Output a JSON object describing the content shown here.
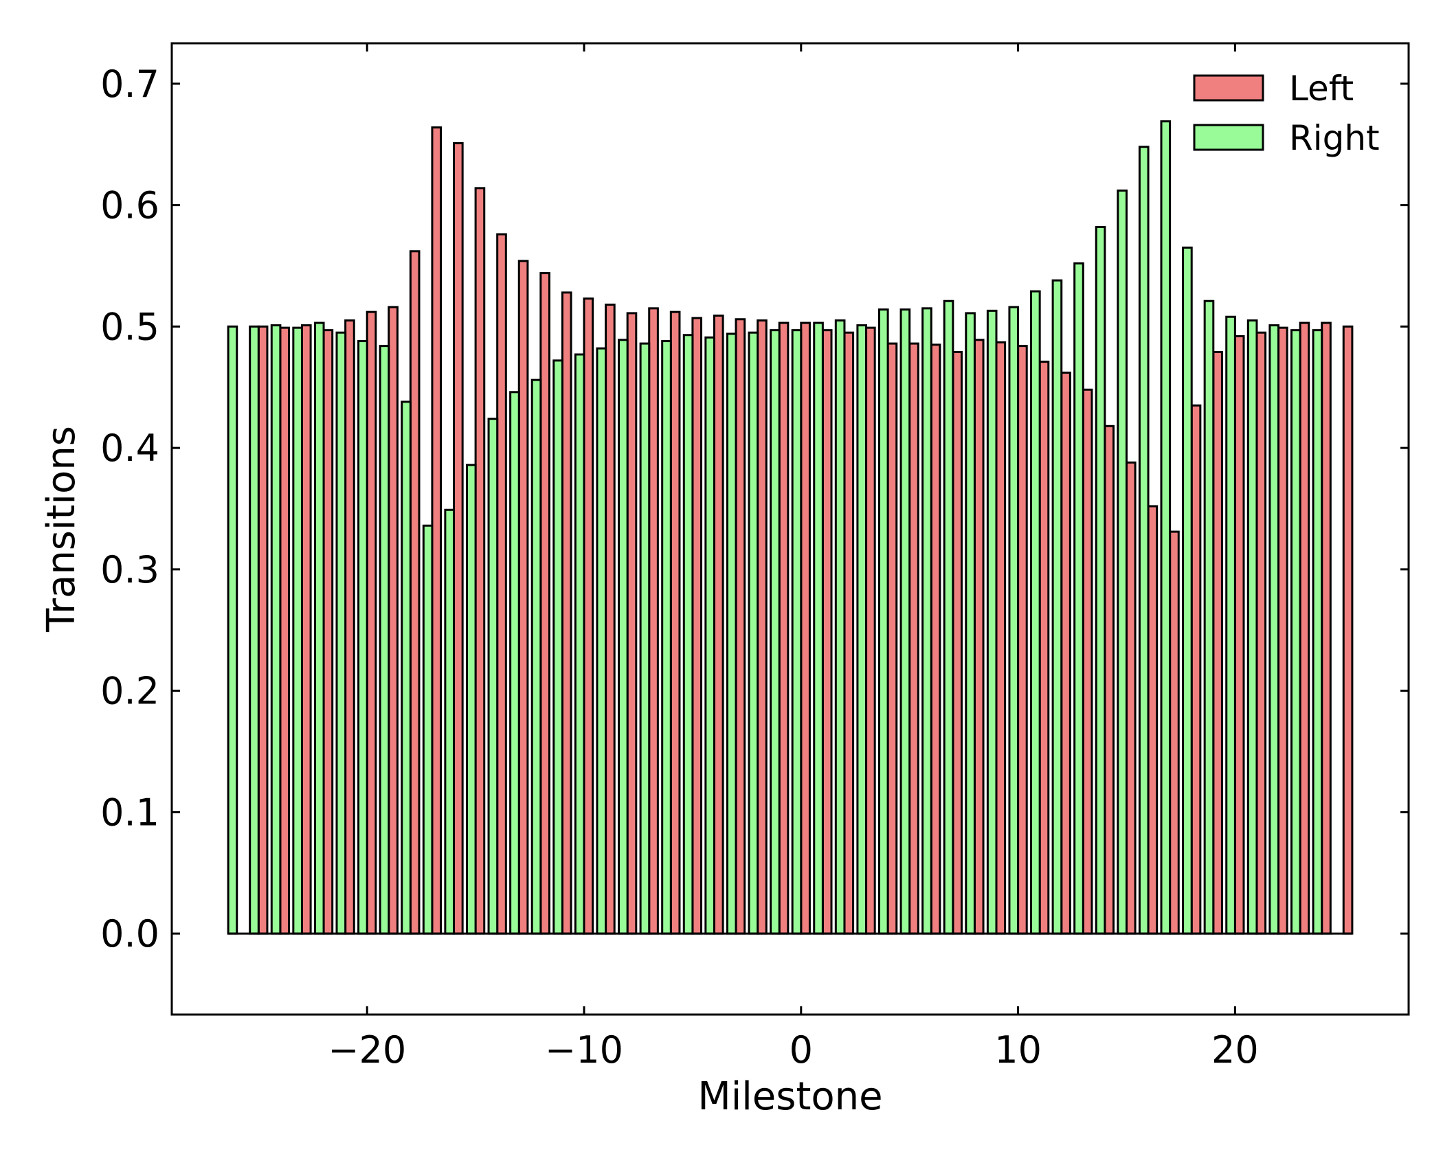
{
  "chart_data": {
    "type": "bar",
    "xlabel": "Milestone",
    "ylabel": "Transitions",
    "xlim": [
      -29,
      28
    ],
    "ylim": [
      -0.0667,
      0.7333
    ],
    "xticks": [
      -20,
      -10,
      0,
      10,
      20
    ],
    "xtick_labels": [
      "−20",
      "−10",
      "0",
      "10",
      "20"
    ],
    "yticks": [
      0.0,
      0.1,
      0.2,
      0.3,
      0.4,
      0.5,
      0.6,
      0.7
    ],
    "ytick_labels": [
      "0.0",
      "0.1",
      "0.2",
      "0.3",
      "0.4",
      "0.5",
      "0.6",
      "0.7"
    ],
    "legend_position": "top-right",
    "colors": {
      "Left": "#f08080",
      "Right": "#98fb98",
      "edge": "#000000"
    },
    "x": [
      -26,
      -25,
      -24,
      -23,
      -22,
      -21,
      -20,
      -19,
      -18,
      -17,
      -16,
      -15,
      -14,
      -13,
      -12,
      -11,
      -10,
      -9,
      -8,
      -7,
      -6,
      -5,
      -4,
      -3,
      -2,
      -1,
      0,
      1,
      2,
      3,
      4,
      5,
      6,
      7,
      8,
      9,
      10,
      11,
      12,
      13,
      14,
      15,
      16,
      17,
      18,
      19,
      20,
      21,
      22,
      23,
      24,
      25
    ],
    "series": [
      {
        "name": "Left",
        "values": [
          0.0,
          0.5,
          0.499,
          0.501,
          0.497,
          0.505,
          0.512,
          0.516,
          0.562,
          0.664,
          0.651,
          0.614,
          0.576,
          0.554,
          0.544,
          0.528,
          0.523,
          0.518,
          0.511,
          0.515,
          0.512,
          0.507,
          0.509,
          0.506,
          0.505,
          0.503,
          0.503,
          0.497,
          0.495,
          0.499,
          0.486,
          0.486,
          0.485,
          0.479,
          0.489,
          0.487,
          0.484,
          0.471,
          0.462,
          0.448,
          0.418,
          0.388,
          0.352,
          0.331,
          0.435,
          0.479,
          0.492,
          0.495,
          0.499,
          0.503,
          0.503,
          0.5
        ]
      },
      {
        "name": "Right",
        "values": [
          0.5,
          0.5,
          0.501,
          0.499,
          0.503,
          0.495,
          0.488,
          0.484,
          0.438,
          0.336,
          0.349,
          0.386,
          0.424,
          0.446,
          0.456,
          0.472,
          0.477,
          0.482,
          0.489,
          0.486,
          0.488,
          0.493,
          0.491,
          0.494,
          0.495,
          0.497,
          0.497,
          0.503,
          0.505,
          0.501,
          0.514,
          0.514,
          0.515,
          0.521,
          0.511,
          0.513,
          0.516,
          0.529,
          0.538,
          0.552,
          0.582,
          0.612,
          0.648,
          0.669,
          0.565,
          0.521,
          0.508,
          0.505,
          0.501,
          0.497,
          0.497,
          0.0
        ]
      }
    ]
  }
}
